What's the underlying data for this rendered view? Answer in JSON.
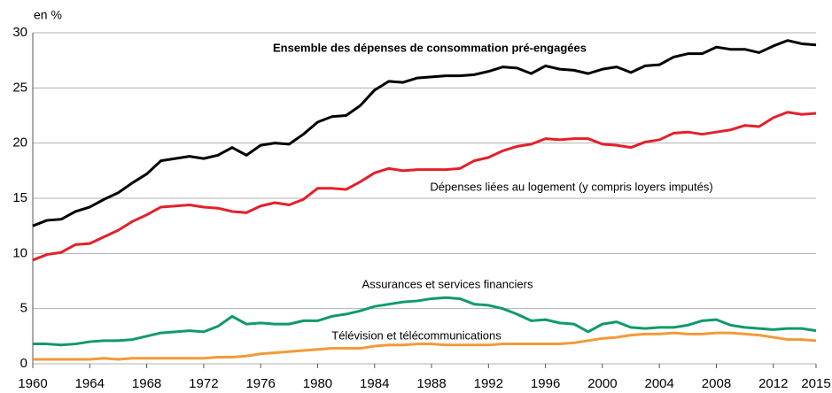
{
  "chart_data": {
    "type": "line",
    "y_label": "en %",
    "x": [
      1960,
      1961,
      1962,
      1963,
      1964,
      1965,
      1966,
      1967,
      1968,
      1969,
      1970,
      1971,
      1972,
      1973,
      1974,
      1975,
      1976,
      1977,
      1978,
      1979,
      1980,
      1981,
      1982,
      1983,
      1984,
      1985,
      1986,
      1987,
      1988,
      1989,
      1990,
      1991,
      1992,
      1993,
      1994,
      1995,
      1996,
      1997,
      1998,
      1999,
      2000,
      2001,
      2002,
      2003,
      2004,
      2005,
      2006,
      2007,
      2008,
      2009,
      2010,
      2011,
      2012,
      2013,
      2014,
      2015
    ],
    "xlim": [
      1960,
      2015
    ],
    "xticks": [
      1960,
      1964,
      1968,
      1972,
      1976,
      1980,
      1984,
      1988,
      1992,
      1996,
      2000,
      2004,
      2008,
      2012,
      2015
    ],
    "ylim": [
      0,
      30
    ],
    "yticks": [
      0,
      5,
      10,
      15,
      20,
      25,
      30
    ],
    "grid": true,
    "series": [
      {
        "name": "Ensemble des dépenses de consommation pré-engagées",
        "color": "#000000",
        "values": [
          12.5,
          13.0,
          13.1,
          13.8,
          14.2,
          14.9,
          15.5,
          16.4,
          17.2,
          18.4,
          18.6,
          18.8,
          18.6,
          18.9,
          19.6,
          18.9,
          19.8,
          20.0,
          19.9,
          20.8,
          21.9,
          22.4,
          22.5,
          23.4,
          24.8,
          25.6,
          25.5,
          25.9,
          26.0,
          26.1,
          26.1,
          26.2,
          26.5,
          26.9,
          26.8,
          26.3,
          27.0,
          26.7,
          26.6,
          26.3,
          26.7,
          26.9,
          26.4,
          27.0,
          27.1,
          27.8,
          28.1,
          28.1,
          28.7,
          28.5,
          28.5,
          28.2,
          28.8,
          29.3,
          29.0,
          28.9
        ]
      },
      {
        "name": "Dépenses liées au logement (y compris loyers imputés)",
        "color": "#e3202a",
        "values": [
          9.4,
          9.9,
          10.1,
          10.8,
          10.9,
          11.5,
          12.1,
          12.9,
          13.5,
          14.2,
          14.3,
          14.4,
          14.2,
          14.1,
          13.8,
          13.7,
          14.3,
          14.6,
          14.4,
          14.9,
          15.9,
          15.9,
          15.8,
          16.5,
          17.3,
          17.7,
          17.5,
          17.6,
          17.6,
          17.6,
          17.7,
          18.4,
          18.7,
          19.3,
          19.7,
          19.9,
          20.4,
          20.3,
          20.4,
          20.4,
          19.9,
          19.8,
          19.6,
          20.1,
          20.3,
          20.9,
          21.0,
          20.8,
          21.0,
          21.2,
          21.6,
          21.5,
          22.3,
          22.8,
          22.6,
          22.7
        ]
      },
      {
        "name": "Assurances et services financiers",
        "color": "#0f9a6a",
        "values": [
          1.8,
          1.8,
          1.7,
          1.8,
          2.0,
          2.1,
          2.1,
          2.2,
          2.5,
          2.8,
          2.9,
          3.0,
          2.9,
          3.4,
          4.3,
          3.6,
          3.7,
          3.6,
          3.6,
          3.9,
          3.9,
          4.3,
          4.5,
          4.8,
          5.2,
          5.4,
          5.6,
          5.7,
          5.9,
          6.0,
          5.9,
          5.4,
          5.3,
          5.0,
          4.5,
          3.9,
          4.0,
          3.7,
          3.6,
          2.9,
          3.6,
          3.8,
          3.3,
          3.2,
          3.3,
          3.3,
          3.5,
          3.9,
          4.0,
          3.5,
          3.3,
          3.2,
          3.1,
          3.2,
          3.2,
          3.0
        ]
      },
      {
        "name": "Télévision et télécommunications",
        "color": "#f29a38",
        "values": [
          0.4,
          0.4,
          0.4,
          0.4,
          0.4,
          0.5,
          0.4,
          0.5,
          0.5,
          0.5,
          0.5,
          0.5,
          0.5,
          0.6,
          0.6,
          0.7,
          0.9,
          1.0,
          1.1,
          1.2,
          1.3,
          1.4,
          1.4,
          1.4,
          1.6,
          1.7,
          1.7,
          1.8,
          1.8,
          1.7,
          1.7,
          1.7,
          1.7,
          1.8,
          1.8,
          1.8,
          1.8,
          1.8,
          1.9,
          2.1,
          2.3,
          2.4,
          2.6,
          2.7,
          2.7,
          2.8,
          2.7,
          2.7,
          2.8,
          2.8,
          2.7,
          2.6,
          2.4,
          2.2,
          2.2,
          2.1
        ]
      }
    ]
  }
}
